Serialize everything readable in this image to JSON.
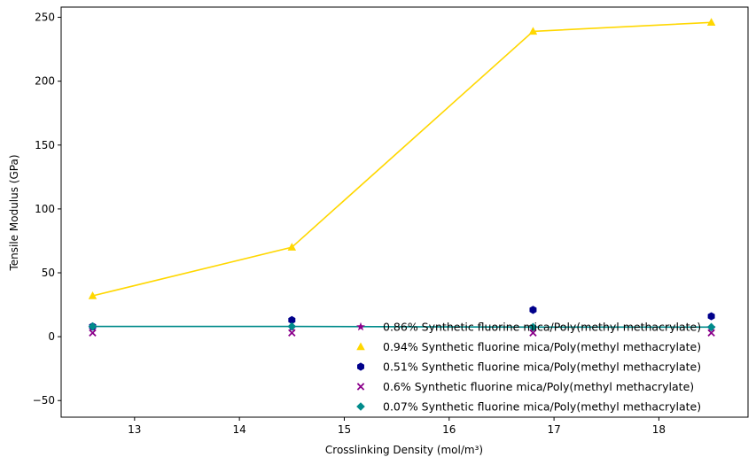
{
  "chart_data": {
    "type": "scatter",
    "title": "",
    "xlabel": "Crosslinking Density (mol/m³)",
    "ylabel": "Tensile Modulus (GPa)",
    "xlim": [
      12.3,
      18.85
    ],
    "ylim": [
      -63,
      258
    ],
    "xticks": [
      13,
      14,
      15,
      16,
      17,
      18
    ],
    "yticks": [
      -50,
      0,
      50,
      100,
      150,
      200,
      250
    ],
    "x": [
      12.6,
      14.5,
      16.8,
      18.5
    ],
    "grid": false,
    "legend_position": "lower-right",
    "series": [
      {
        "name": "0.86% Synthetic fluorine mica/Poly(methyl methacrylate)",
        "marker": "star",
        "color": "#8b008b",
        "values": [
          7,
          7,
          7,
          7
        ],
        "fit_line": false
      },
      {
        "name": "0.94% Synthetic fluorine mica/Poly(methyl methacrylate)",
        "marker": "triangle",
        "color": "#ffd700",
        "values": [
          32,
          70,
          239,
          246
        ],
        "fit_line": true
      },
      {
        "name": "0.51% Synthetic fluorine mica/Poly(methyl methacrylate)",
        "marker": "hexagon",
        "color": "#00008b",
        "values": [
          8,
          13,
          21,
          16
        ],
        "fit_line": false
      },
      {
        "name": "0.6% Synthetic fluorine mica/Poly(methyl methacrylate)",
        "marker": "x",
        "color": "#8b008b",
        "values": [
          3,
          3,
          3,
          3
        ],
        "fit_line": false
      },
      {
        "name": "0.07% Synthetic fluorine mica/Poly(methyl methacrylate)",
        "marker": "diamond",
        "color": "#008b8b",
        "values": [
          8,
          8,
          7.5,
          7.5
        ],
        "fit_line": true
      }
    ]
  }
}
